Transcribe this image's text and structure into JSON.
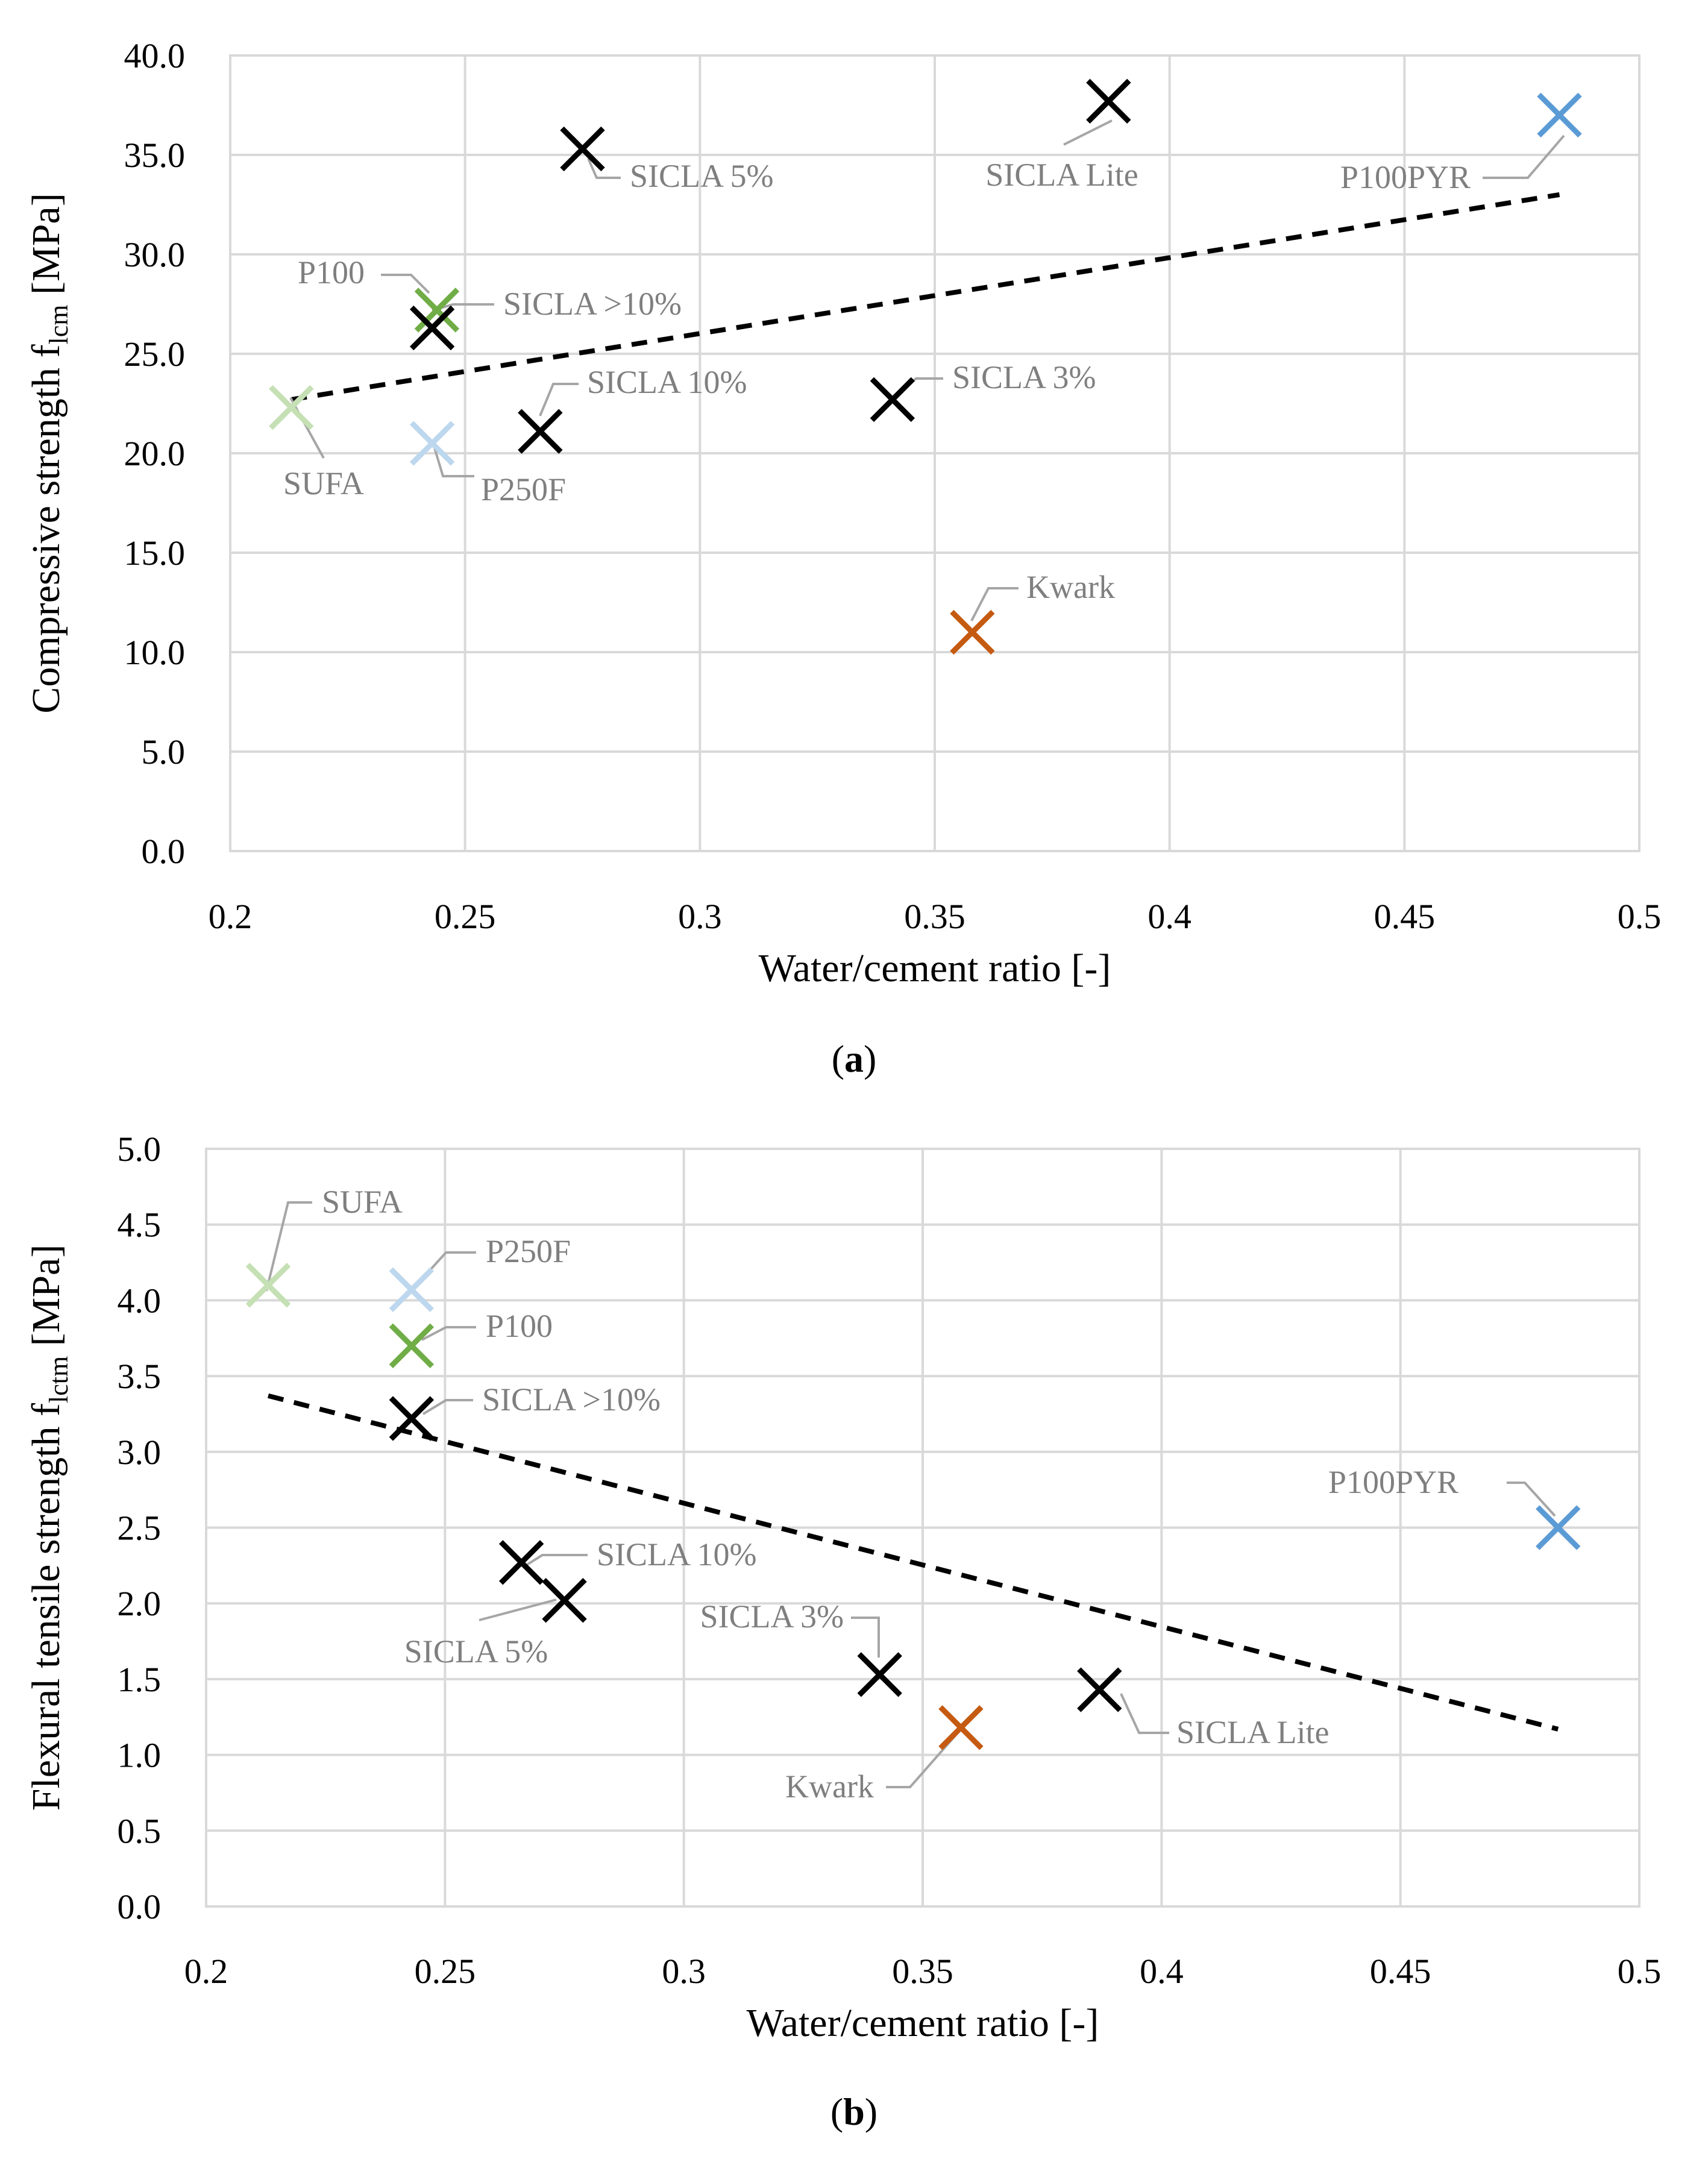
{
  "chart_data": [
    {
      "type": "scatter",
      "panel_label_prefix": "(",
      "panel_label_letter": "a",
      "panel_label_suffix": ")",
      "ylabel": "Compressive strength f",
      "ylabel_subscript": "lcm",
      "ylabel_unit": " [MPa]",
      "xlabel": "Water/cement ratio [-]",
      "xlim": [
        0.2,
        0.5
      ],
      "ylim": [
        0,
        40
      ],
      "xticks": [
        "0.2",
        "0.25",
        "0.3",
        "0.35",
        "0.4",
        "0.45",
        "0.5"
      ],
      "yticks": [
        "0.0",
        "5.0",
        "10.0",
        "15.0",
        "20.0",
        "25.0",
        "30.0",
        "35.0",
        "40.0"
      ],
      "grid": true,
      "trendline": {
        "style": "dashed",
        "color": "#000000",
        "x": [
          0.213,
          0.483
        ],
        "y": [
          22.7,
          33.0
        ]
      },
      "points": [
        {
          "label": "SUFA",
          "x": 0.213,
          "y": 22.3,
          "color": "#c5e0b4"
        },
        {
          "label": "P250F",
          "x": 0.243,
          "y": 20.5,
          "color": "#bdd7ee"
        },
        {
          "label": "P100",
          "x": 0.244,
          "y": 27.2,
          "color": "#70ad47"
        },
        {
          "label": "SICLA >10%",
          "x": 0.243,
          "y": 26.3,
          "color": "#000000"
        },
        {
          "label": "SICLA 10%",
          "x": 0.266,
          "y": 21.1,
          "color": "#000000"
        },
        {
          "label": "SICLA 5%",
          "x": 0.275,
          "y": 35.3,
          "color": "#000000"
        },
        {
          "label": "SICLA 3%",
          "x": 0.341,
          "y": 22.7,
          "color": "#000000"
        },
        {
          "label": "Kwark",
          "x": 0.358,
          "y": 11.0,
          "color": "#c55a11"
        },
        {
          "label": "SICLA Lite",
          "x": 0.387,
          "y": 37.7,
          "color": "#000000"
        },
        {
          "label": "P100PYR",
          "x": 0.483,
          "y": 37.0,
          "color": "#5b9bd5"
        }
      ]
    },
    {
      "type": "scatter",
      "panel_label_prefix": "(",
      "panel_label_letter": "b",
      "panel_label_suffix": ")",
      "ylabel": "Flexural tensile strength f",
      "ylabel_subscript": "lctm",
      "ylabel_unit": " [MPa]",
      "xlabel": "Water/cement ratio [-]",
      "xlim": [
        0.2,
        0.5
      ],
      "ylim": [
        0,
        5
      ],
      "xticks": [
        "0.2",
        "0.25",
        "0.3",
        "0.35",
        "0.4",
        "0.45",
        "0.5"
      ],
      "yticks": [
        "0.0",
        "0.5",
        "1.0",
        "1.5",
        "2.0",
        "2.5",
        "3.0",
        "3.5",
        "4.0",
        "4.5",
        "5.0"
      ],
      "grid": true,
      "trendline": {
        "style": "dashed",
        "color": "#000000",
        "x": [
          0.213,
          0.483
        ],
        "y": [
          3.37,
          1.17
        ]
      },
      "points": [
        {
          "label": "SUFA",
          "x": 0.213,
          "y": 4.1,
          "color": "#c5e0b4"
        },
        {
          "label": "P250F",
          "x": 0.243,
          "y": 4.07,
          "color": "#bdd7ee"
        },
        {
          "label": "P100",
          "x": 0.243,
          "y": 3.7,
          "color": "#70ad47"
        },
        {
          "label": "SICLA >10%",
          "x": 0.243,
          "y": 3.22,
          "color": "#000000"
        },
        {
          "label": "SICLA 10%",
          "x": 0.266,
          "y": 2.27,
          "color": "#000000"
        },
        {
          "label": "SICLA 5%",
          "x": 0.275,
          "y": 2.02,
          "color": "#000000"
        },
        {
          "label": "SICLA 3%",
          "x": 0.341,
          "y": 1.53,
          "color": "#000000"
        },
        {
          "label": "Kwark",
          "x": 0.358,
          "y": 1.18,
          "color": "#c55a11"
        },
        {
          "label": "SICLA Lite",
          "x": 0.387,
          "y": 1.43,
          "color": "#000000"
        },
        {
          "label": "P100PYR",
          "x": 0.483,
          "y": 2.5,
          "color": "#5b9bd5"
        }
      ]
    }
  ]
}
